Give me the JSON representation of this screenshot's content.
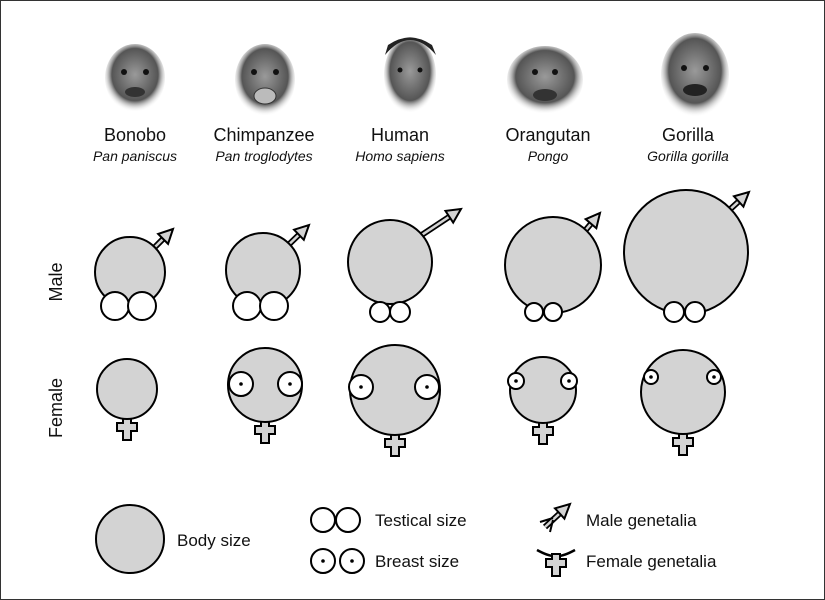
{
  "species": [
    {
      "name": "Bonobo",
      "scientific": "Pan paniscus"
    },
    {
      "name": "Chimpanzee",
      "scientific": "Pan troglodytes"
    },
    {
      "name": "Human",
      "scientific": "Homo sapiens"
    },
    {
      "name": "Orangutan",
      "scientific": "Pongo"
    },
    {
      "name": "Gorilla",
      "scientific": "Gorilla gorilla"
    }
  ],
  "rows": {
    "male": "Male",
    "female": "Female"
  },
  "legend": {
    "body_size": "Body size",
    "testical_size": "Testical size",
    "breast_size": "Breast size",
    "male_genetalia": "Male genetalia",
    "female_genetalia": "Female genetalia"
  },
  "colors": {
    "body_fill": "#d3d3d3",
    "outline": "#000000"
  }
}
